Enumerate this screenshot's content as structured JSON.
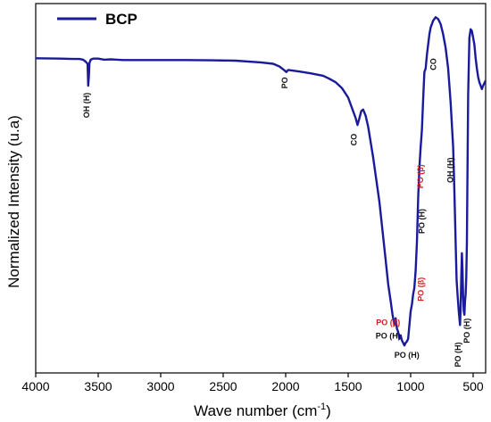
{
  "chart_data": {
    "type": "line",
    "title": "",
    "xlabel": "Wave number (cm",
    "xlabel_sup": "-1",
    "xlabel_close": ")",
    "ylabel": "Normalized  Intensity (u.a)",
    "xlim": [
      4000,
      400
    ],
    "x_reversed": true,
    "x_ticks": [
      4000,
      3500,
      3000,
      2500,
      2000,
      1500,
      1000,
      500
    ],
    "y_ticks": [],
    "grid": false,
    "legend_position": "top-left",
    "series": [
      {
        "name": "BCP",
        "color": "#1a1a9c",
        "x": [
          4000,
          3800,
          3700,
          3650,
          3620,
          3600,
          3585,
          3580,
          3575,
          3570,
          3560,
          3540,
          3500,
          3450,
          3400,
          3300,
          3200,
          3000,
          2800,
          2600,
          2400,
          2200,
          2100,
          2050,
          2010,
          1995,
          1980,
          1960,
          1900,
          1800,
          1700,
          1650,
          1600,
          1550,
          1500,
          1470,
          1440,
          1425,
          1410,
          1395,
          1380,
          1360,
          1340,
          1300,
          1250,
          1200,
          1180,
          1160,
          1145,
          1130,
          1120,
          1110,
          1100,
          1090,
          1080,
          1070,
          1060,
          1050,
          1040,
          1030,
          1020,
          1010,
          1000,
          990,
          980,
          970,
          960,
          950,
          940,
          930,
          920,
          910,
          900,
          890,
          880,
          870,
          860,
          850,
          840,
          820,
          800,
          780,
          760,
          740,
          720,
          700,
          680,
          660,
          650,
          640,
          632,
          625,
          615,
          605,
          600,
          595,
          590,
          585,
          580,
          575,
          570,
          565,
          560,
          555,
          550,
          545,
          540,
          530,
          520,
          510,
          500,
          490,
          480,
          470,
          460,
          450,
          440,
          430,
          420,
          400
        ],
        "y": [
          84.0,
          83.9,
          83.8,
          83.8,
          83.6,
          83.0,
          82.4,
          76.0,
          78.5,
          82.6,
          83.6,
          83.9,
          83.9,
          83.6,
          83.7,
          83.5,
          83.5,
          83.5,
          83.5,
          83.4,
          83.3,
          82.8,
          82.4,
          81.6,
          80.5,
          80.0,
          80.6,
          80.5,
          80.2,
          79.6,
          78.9,
          78.0,
          77.0,
          75.3,
          72.5,
          69.5,
          66.5,
          64.5,
          66.5,
          68.6,
          69.0,
          67.2,
          64.0,
          55.0,
          42.0,
          25.0,
          18.0,
          13.0,
          9.0,
          6.0,
          8.0,
          5.0,
          4.0,
          2.0,
          3.0,
          1.5,
          0.8,
          0.0,
          0.8,
          1.2,
          2.0,
          6.0,
          10.0,
          12.0,
          15.0,
          17.0,
          22.0,
          30.0,
          43.0,
          52.0,
          58.0,
          63.0,
          72.0,
          80.0,
          81.0,
          85.0,
          88.0,
          91.0,
          93.0,
          95.0,
          96.0,
          95.5,
          94.0,
          91.0,
          87.0,
          81.0,
          71.0,
          58.0,
          45.0,
          30.0,
          19.0,
          15.0,
          10.0,
          6.0,
          11.0,
          20.0,
          27.0,
          22.0,
          14.0,
          10.0,
          9.0,
          13.0,
          15.0,
          20.0,
          30.0,
          52.0,
          73.0,
          90.0,
          92.5,
          92.0,
          90.0,
          88.0,
          84.0,
          81.0,
          78.5,
          77.0,
          76.0,
          75.0,
          76.0,
          77.5
        ]
      }
    ],
    "annotations": [
      {
        "text": "OH (H)",
        "x": 3570,
        "y": 74.0,
        "color": "#111111",
        "rotate": -90
      },
      {
        "text": "PO",
        "x": 1985,
        "y": 78.5,
        "color": "#111111",
        "rotate": -90
      },
      {
        "text": "CO",
        "x": 1432,
        "y": 62.0,
        "color": "#111111",
        "rotate": -90
      },
      {
        "text": "CO",
        "x": 795,
        "y": 84.0,
        "color": "#111111",
        "rotate": -90
      },
      {
        "text": "PO (β)",
        "x": 900,
        "y": 53.0,
        "color": "#d42020",
        "rotate": -90
      },
      {
        "text": "PO (H)",
        "x": 890,
        "y": 40.0,
        "color": "#111111",
        "rotate": -90
      },
      {
        "text": "OH (H)",
        "x": 660,
        "y": 55.0,
        "color": "#111111",
        "rotate": -90
      },
      {
        "text": "PO (β)",
        "x": 895,
        "y": 20.0,
        "color": "#d42020",
        "rotate": -90
      },
      {
        "text": "PO (H)",
        "x": 600,
        "y": 1.0,
        "color": "#111111",
        "rotate": -90
      },
      {
        "text": "PO (H)",
        "x": 530,
        "y": 8.0,
        "color": "#111111",
        "rotate": -90
      },
      {
        "text": "PO (β)",
        "x": 1180,
        "y": 6.0,
        "color": "#d42020",
        "rotate": 0
      },
      {
        "text": "PO (H)",
        "x": 1180,
        "y": 2.0,
        "color": "#111111",
        "rotate": 0
      },
      {
        "text": "PO (H)",
        "x": 1030,
        "y": -3.5,
        "color": "#111111",
        "rotate": 0
      }
    ]
  }
}
